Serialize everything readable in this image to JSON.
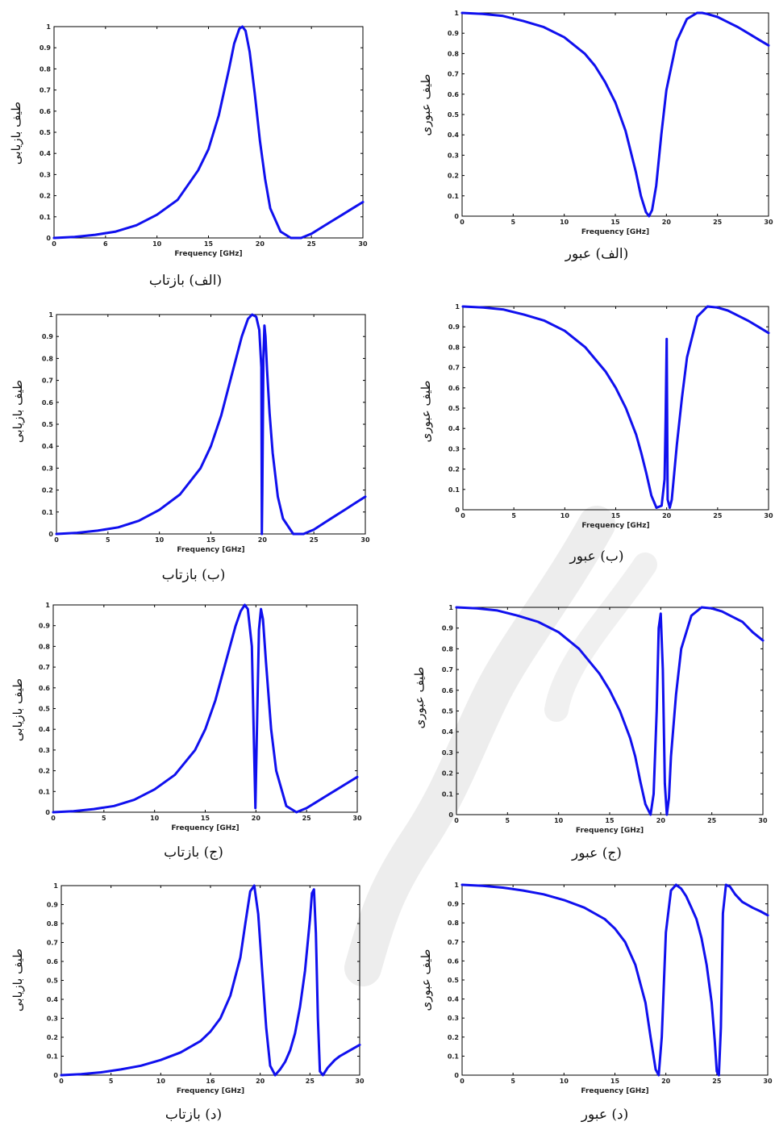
{
  "colors": {
    "curve": "#1010ee",
    "axis": "#000000",
    "watermark": "#e6e6e6"
  },
  "charts": [
    {
      "id": "a-refl",
      "caption": "(الف) بازتاب",
      "ylabel": "طیف بازیابی",
      "xlabel": "Frequency [GHz]",
      "xticks": [
        0,
        6,
        10,
        15,
        20,
        25,
        30
      ],
      "yticks": [
        0,
        0.1,
        0.2,
        0.3,
        0.4,
        0.5,
        0.6,
        0.7,
        0.8,
        0.9,
        1
      ]
    },
    {
      "id": "a-trans",
      "caption": "(الف) عبور",
      "ylabel": "طیف عبوری",
      "xlabel": "Frequency [GHz]",
      "xticks": [
        0,
        5,
        10,
        15,
        20,
        25,
        30
      ],
      "yticks": [
        0,
        0.1,
        0.2,
        0.3,
        0.4,
        0.5,
        0.6,
        0.7,
        0.8,
        0.9,
        1
      ]
    },
    {
      "id": "b-refl",
      "caption": "(ب) بازتاب",
      "ylabel": "طیف بازیابی",
      "xlabel": "Frequency [GHz]",
      "xticks": [
        0,
        5,
        10,
        15,
        20,
        25,
        30
      ],
      "yticks": [
        0,
        0.1,
        0.2,
        0.3,
        0.4,
        0.5,
        0.6,
        0.7,
        0.8,
        0.9,
        1
      ]
    },
    {
      "id": "b-trans",
      "caption": "(ب) عبور",
      "ylabel": "طیف عبوری",
      "xlabel": "Frequency [GHz]",
      "xticks": [
        0,
        5,
        10,
        15,
        20,
        25,
        30
      ],
      "yticks": [
        0,
        0.1,
        0.2,
        0.3,
        0.4,
        0.5,
        0.6,
        0.7,
        0.8,
        0.9,
        1
      ]
    },
    {
      "id": "c-refl",
      "caption": "(ج) بازتاب",
      "ylabel": "طیف بازیابی",
      "xlabel": "Frequency [GHz]",
      "xticks": [
        0,
        5,
        10,
        15,
        20,
        25,
        30
      ],
      "yticks": [
        0,
        0.1,
        0.2,
        0.3,
        0.4,
        0.5,
        0.6,
        0.7,
        0.8,
        0.9,
        1
      ]
    },
    {
      "id": "c-trans",
      "caption": "(ج) عبور",
      "ylabel": "طیف عبوری",
      "xlabel": "Frequency [GHz]",
      "xticks": [
        0,
        5,
        10,
        15,
        20,
        25,
        30
      ],
      "yticks": [
        0,
        0.1,
        0.2,
        0.3,
        0.4,
        0.5,
        0.6,
        0.7,
        0.8,
        0.9,
        1
      ]
    },
    {
      "id": "d-refl",
      "caption": "(د) بازتاب",
      "ylabel": "طیف بازیابی",
      "xlabel": "Frequency [GHz]",
      "xticks": [
        0,
        5,
        10,
        16,
        20,
        25,
        30
      ],
      "yticks": [
        0,
        0.1,
        0.2,
        0.3,
        0.4,
        0.5,
        0.6,
        0.7,
        0.8,
        0.9,
        1
      ]
    },
    {
      "id": "d-trans",
      "caption": "(د) عبور",
      "ylabel": "طیف عبوری",
      "xlabel": "Frequency [GHz]",
      "xticks": [
        0,
        5,
        10,
        15,
        20,
        25,
        30
      ],
      "yticks": [
        0,
        0.1,
        0.2,
        0.3,
        0.4,
        0.5,
        0.6,
        0.7,
        0.8,
        0.9,
        1
      ]
    }
  ],
  "chart_data": [
    {
      "type": "line",
      "xlim": [
        0,
        30
      ],
      "ylim": [
        0,
        1
      ],
      "series": [
        {
          "x": [
            0,
            2,
            4,
            6,
            8,
            10,
            12,
            14,
            15,
            16,
            17,
            17.5,
            18,
            18.3,
            18.6,
            19,
            19.5,
            20,
            20.5,
            21,
            22,
            23,
            24,
            25,
            26,
            27,
            28,
            29,
            30
          ],
          "y": [
            0.0,
            0.005,
            0.015,
            0.03,
            0.06,
            0.11,
            0.18,
            0.32,
            0.42,
            0.58,
            0.8,
            0.92,
            0.99,
            1.0,
            0.98,
            0.88,
            0.68,
            0.46,
            0.28,
            0.14,
            0.03,
            0.0,
            0.0,
            0.02,
            0.05,
            0.08,
            0.11,
            0.14,
            0.17
          ]
        }
      ]
    },
    {
      "type": "line",
      "xlim": [
        0,
        30
      ],
      "ylim": [
        0,
        1
      ],
      "series": [
        {
          "x": [
            0,
            2,
            4,
            6,
            8,
            10,
            12,
            13,
            14,
            15,
            16,
            17,
            17.5,
            18,
            18.3,
            18.6,
            19,
            19.5,
            20,
            21,
            22,
            23,
            23.5,
            24,
            25,
            26,
            27,
            28,
            29,
            30
          ],
          "y": [
            1.0,
            0.995,
            0.985,
            0.96,
            0.93,
            0.88,
            0.8,
            0.74,
            0.66,
            0.56,
            0.42,
            0.22,
            0.1,
            0.02,
            0.0,
            0.03,
            0.15,
            0.4,
            0.62,
            0.86,
            0.97,
            1.0,
            1.0,
            0.995,
            0.98,
            0.955,
            0.93,
            0.9,
            0.87,
            0.84
          ]
        }
      ]
    },
    {
      "type": "line",
      "xlim": [
        0,
        30
      ],
      "ylim": [
        0,
        1
      ],
      "series": [
        {
          "x": [
            0,
            2,
            4,
            6,
            8,
            10,
            12,
            14,
            15,
            16,
            17,
            18,
            18.6,
            19,
            19.4,
            19.7,
            19.9,
            19.95,
            20.0,
            20.1,
            20.2,
            20.3,
            20.45,
            20.7,
            21,
            21.5,
            22,
            23,
            24,
            25,
            26,
            27,
            28,
            29,
            30
          ],
          "y": [
            0.0,
            0.005,
            0.015,
            0.03,
            0.06,
            0.11,
            0.18,
            0.3,
            0.4,
            0.54,
            0.72,
            0.9,
            0.98,
            1.0,
            0.99,
            0.93,
            0.76,
            0.0,
            0.2,
            0.8,
            0.95,
            0.9,
            0.75,
            0.55,
            0.37,
            0.17,
            0.07,
            0.0,
            0.0,
            0.02,
            0.05,
            0.08,
            0.11,
            0.14,
            0.17
          ]
        }
      ]
    },
    {
      "type": "line",
      "xlim": [
        0,
        30
      ],
      "ylim": [
        0,
        1
      ],
      "series": [
        {
          "x": [
            0,
            2,
            4,
            6,
            8,
            10,
            12,
            14,
            15,
            16,
            17,
            17.5,
            18,
            18.5,
            19,
            19.5,
            19.8,
            19.9,
            20.0,
            20.1,
            20.3,
            20.5,
            21,
            21.5,
            22,
            23,
            24,
            25,
            26,
            27,
            28,
            29,
            30
          ],
          "y": [
            1.0,
            0.995,
            0.985,
            0.96,
            0.93,
            0.88,
            0.8,
            0.68,
            0.6,
            0.5,
            0.37,
            0.28,
            0.18,
            0.07,
            0.01,
            0.02,
            0.15,
            0.45,
            0.84,
            0.05,
            0.01,
            0.05,
            0.32,
            0.55,
            0.75,
            0.95,
            1.0,
            0.995,
            0.98,
            0.955,
            0.93,
            0.9,
            0.87
          ]
        }
      ]
    },
    {
      "type": "line",
      "xlim": [
        0,
        30
      ],
      "ylim": [
        0,
        1
      ],
      "series": [
        {
          "x": [
            0,
            2,
            4,
            6,
            8,
            10,
            12,
            14,
            15,
            16,
            17,
            18,
            18.5,
            18.9,
            19.2,
            19.6,
            19.8,
            19.95,
            20.1,
            20.3,
            20.5,
            20.7,
            21,
            21.5,
            22,
            23,
            24,
            25,
            26,
            27,
            28,
            29,
            30
          ],
          "y": [
            0.0,
            0.005,
            0.015,
            0.03,
            0.06,
            0.11,
            0.18,
            0.3,
            0.4,
            0.54,
            0.72,
            0.9,
            0.97,
            1.0,
            0.98,
            0.8,
            0.35,
            0.02,
            0.4,
            0.88,
            0.98,
            0.93,
            0.72,
            0.4,
            0.2,
            0.03,
            0.0,
            0.02,
            0.05,
            0.08,
            0.11,
            0.14,
            0.17
          ]
        }
      ]
    },
    {
      "type": "line",
      "xlim": [
        0,
        30
      ],
      "ylim": [
        0,
        1
      ],
      "series": [
        {
          "x": [
            0,
            2,
            4,
            6,
            8,
            10,
            12,
            14,
            15,
            16,
            17,
            17.5,
            18,
            18.5,
            19,
            19.3,
            19.6,
            19.8,
            20.0,
            20.2,
            20.4,
            20.6,
            20.8,
            21,
            21.5,
            22,
            23,
            24,
            25,
            26,
            27,
            28,
            29,
            30
          ],
          "y": [
            1.0,
            0.995,
            0.985,
            0.96,
            0.93,
            0.88,
            0.8,
            0.68,
            0.6,
            0.5,
            0.37,
            0.28,
            0.16,
            0.05,
            0.0,
            0.1,
            0.5,
            0.9,
            0.97,
            0.7,
            0.15,
            0.0,
            0.08,
            0.28,
            0.58,
            0.8,
            0.96,
            1.0,
            0.995,
            0.98,
            0.955,
            0.93,
            0.88,
            0.84
          ]
        }
      ]
    },
    {
      "type": "line",
      "xlim": [
        0,
        30
      ],
      "ylim": [
        0,
        1
      ],
      "series": [
        {
          "x": [
            0,
            2,
            4,
            6,
            8,
            10,
            12,
            14,
            15,
            16,
            17,
            18,
            18.5,
            19,
            19.4,
            19.8,
            20.2,
            20.6,
            21,
            21.5,
            22,
            22.5,
            23,
            23.5,
            24,
            24.5,
            25,
            25.2,
            25.4,
            25.6,
            25.8,
            26.0,
            26.3,
            26.8,
            27.5,
            28,
            29,
            30
          ],
          "y": [
            0.0,
            0.005,
            0.015,
            0.03,
            0.05,
            0.08,
            0.12,
            0.18,
            0.23,
            0.3,
            0.42,
            0.62,
            0.8,
            0.97,
            1.0,
            0.85,
            0.55,
            0.25,
            0.05,
            0.0,
            0.03,
            0.07,
            0.13,
            0.22,
            0.36,
            0.55,
            0.82,
            0.96,
            0.98,
            0.75,
            0.3,
            0.02,
            0.0,
            0.04,
            0.08,
            0.1,
            0.13,
            0.16
          ]
        }
      ]
    },
    {
      "type": "line",
      "xlim": [
        0,
        30
      ],
      "ylim": [
        0,
        1
      ],
      "series": [
        {
          "x": [
            0,
            2,
            4,
            6,
            8,
            10,
            12,
            14,
            15,
            16,
            17,
            18,
            18.5,
            19,
            19.3,
            19.6,
            20,
            20.5,
            21,
            21.5,
            22,
            22.5,
            23,
            23.5,
            24,
            24.5,
            24.8,
            25.0,
            25.2,
            25.4,
            25.6,
            25.9,
            26.3,
            26.8,
            27.5,
            28.5,
            29.3,
            30
          ],
          "y": [
            1.0,
            0.995,
            0.985,
            0.97,
            0.95,
            0.92,
            0.88,
            0.82,
            0.77,
            0.7,
            0.58,
            0.38,
            0.2,
            0.03,
            0.0,
            0.2,
            0.75,
            0.97,
            1.0,
            0.98,
            0.94,
            0.88,
            0.82,
            0.72,
            0.58,
            0.38,
            0.18,
            0.02,
            0.0,
            0.25,
            0.85,
            1.0,
            0.99,
            0.95,
            0.91,
            0.88,
            0.86,
            0.84
          ]
        }
      ]
    }
  ]
}
